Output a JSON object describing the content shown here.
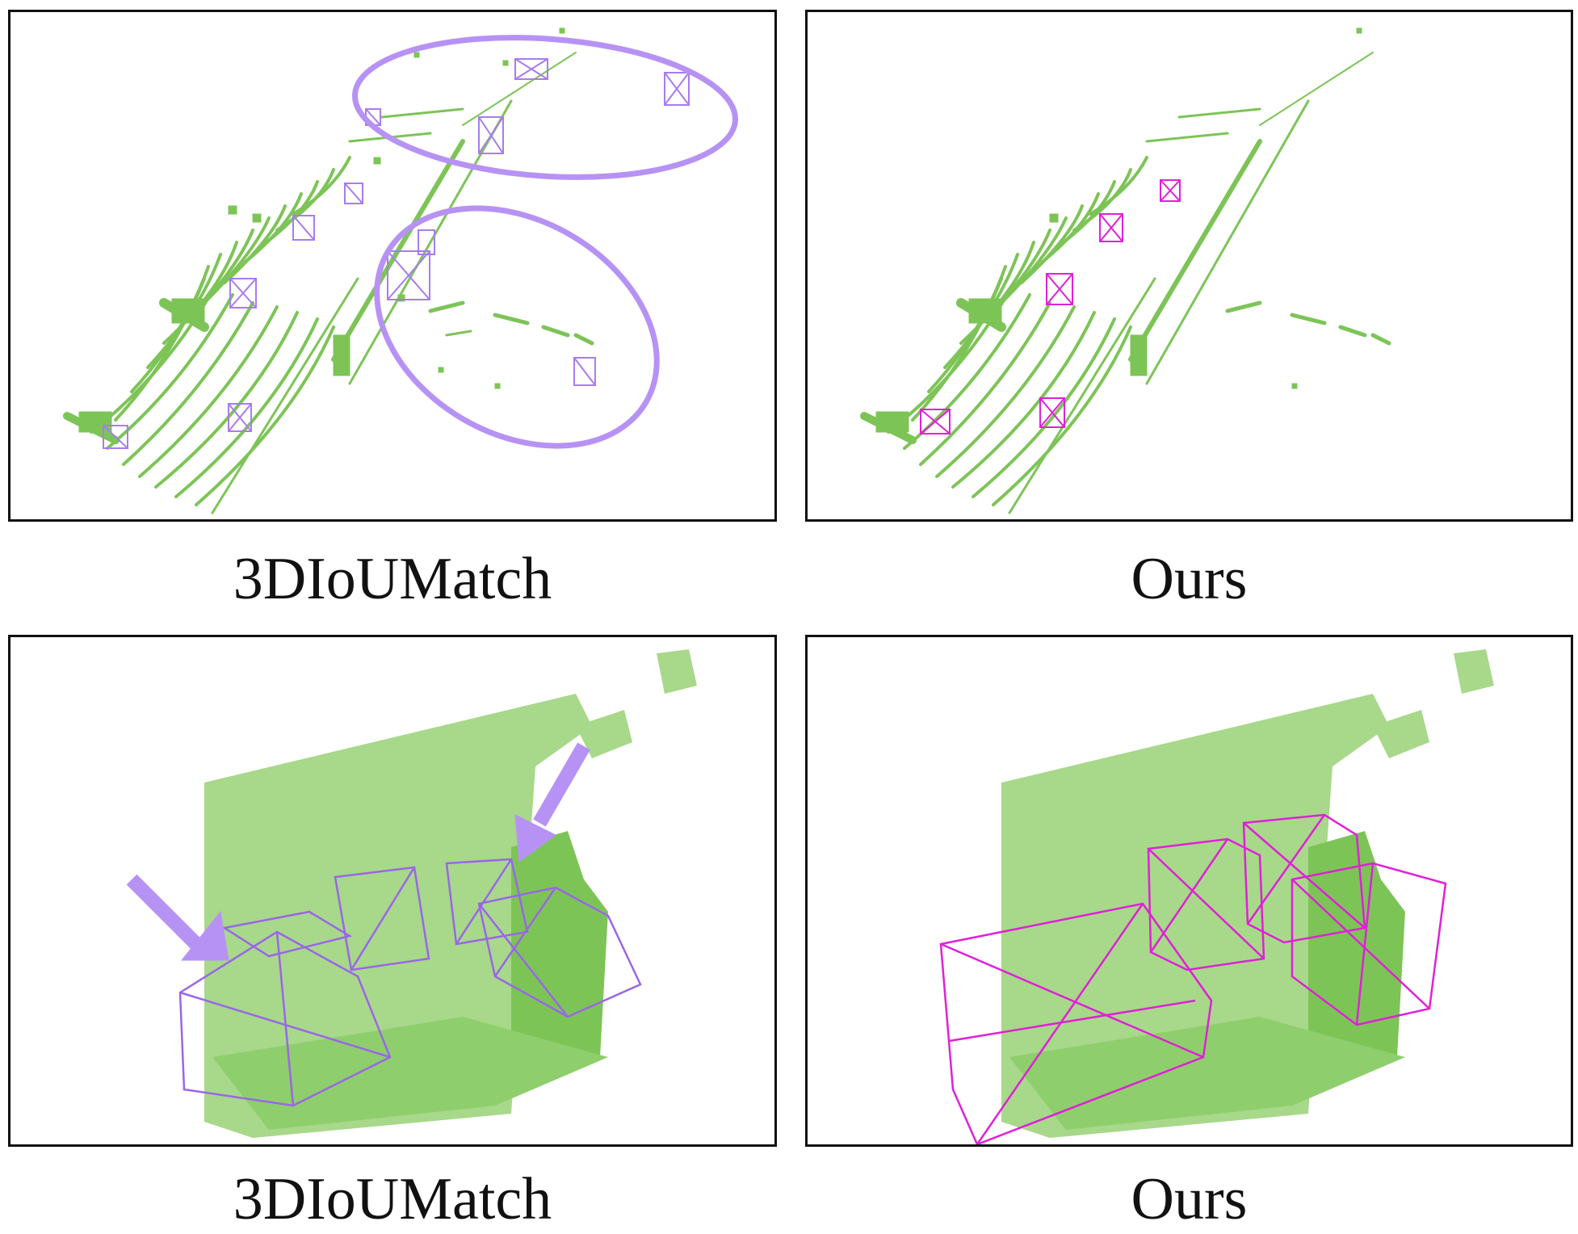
{
  "figure": {
    "panels": [
      {
        "id": "top-left",
        "caption": "3DIoUMatch",
        "box_color": "#a77cf0",
        "annotation": "ellipses"
      },
      {
        "id": "top-right",
        "caption": "Ours",
        "box_color": "#e020d8",
        "annotation": "none"
      },
      {
        "id": "bottom-left",
        "caption": "3DIoUMatch",
        "box_color": "#9a66e8",
        "annotation": "arrows"
      },
      {
        "id": "bottom-right",
        "caption": "Ours",
        "box_color": "#e020d8",
        "annotation": "none"
      }
    ],
    "colors": {
      "point_cloud": "#7dc457",
      "point_cloud_light": "#a8d88a",
      "baseline_box": "#9a66e8",
      "ours_box": "#e020d8",
      "highlight": "#b792f5",
      "frame": "#111111"
    }
  }
}
